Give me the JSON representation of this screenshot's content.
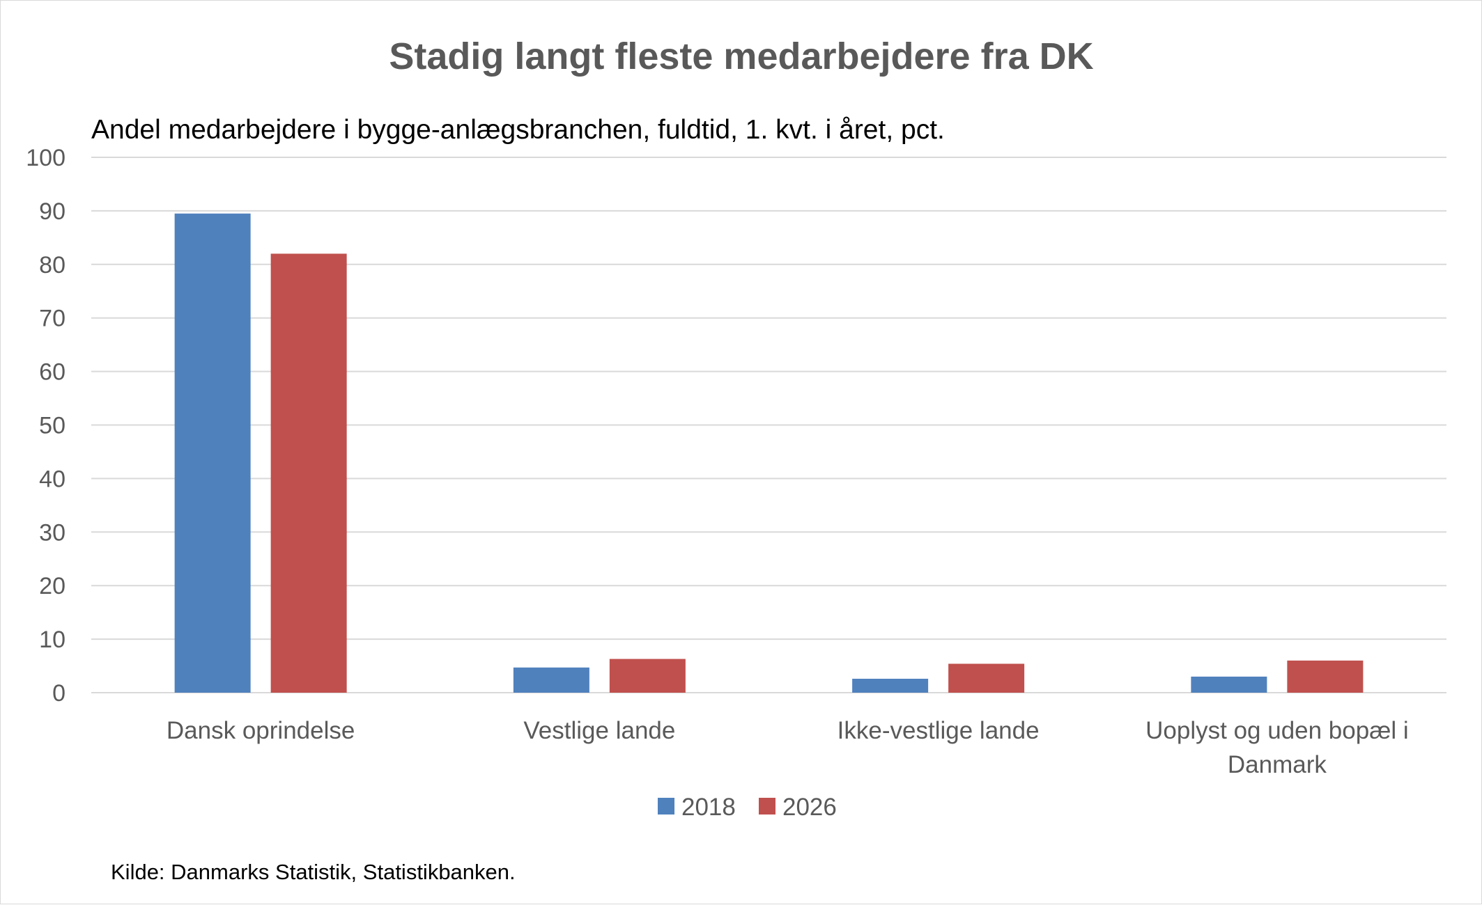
{
  "chart_data": {
    "type": "bar",
    "title": "Stadig langt fleste medarbejdere fra DK",
    "subtitle": "Andel medarbejdere i bygge-anlægsbranchen, fuldtid, 1. kvt. i året, pct.",
    "source": "Kilde: Danmarks Statistik, Statistikbanken.",
    "categories": [
      [
        "Dansk oprindelse"
      ],
      [
        "Vestlige lande"
      ],
      [
        "Ikke-vestlige lande"
      ],
      [
        "Uoplyst og uden bopæl i",
        "Danmark"
      ]
    ],
    "series": [
      {
        "name": "2018",
        "color": "#4f81bd",
        "values": [
          89.5,
          4.7,
          2.6,
          3.0
        ]
      },
      {
        "name": "2026",
        "color": "#c0504d",
        "values": [
          82.0,
          6.3,
          5.4,
          6.0
        ]
      }
    ],
    "ylim": [
      0,
      100
    ],
    "yticks": [
      0,
      10,
      20,
      30,
      40,
      50,
      60,
      70,
      80,
      90,
      100
    ],
    "grid": true,
    "legend_position": "bottom"
  }
}
